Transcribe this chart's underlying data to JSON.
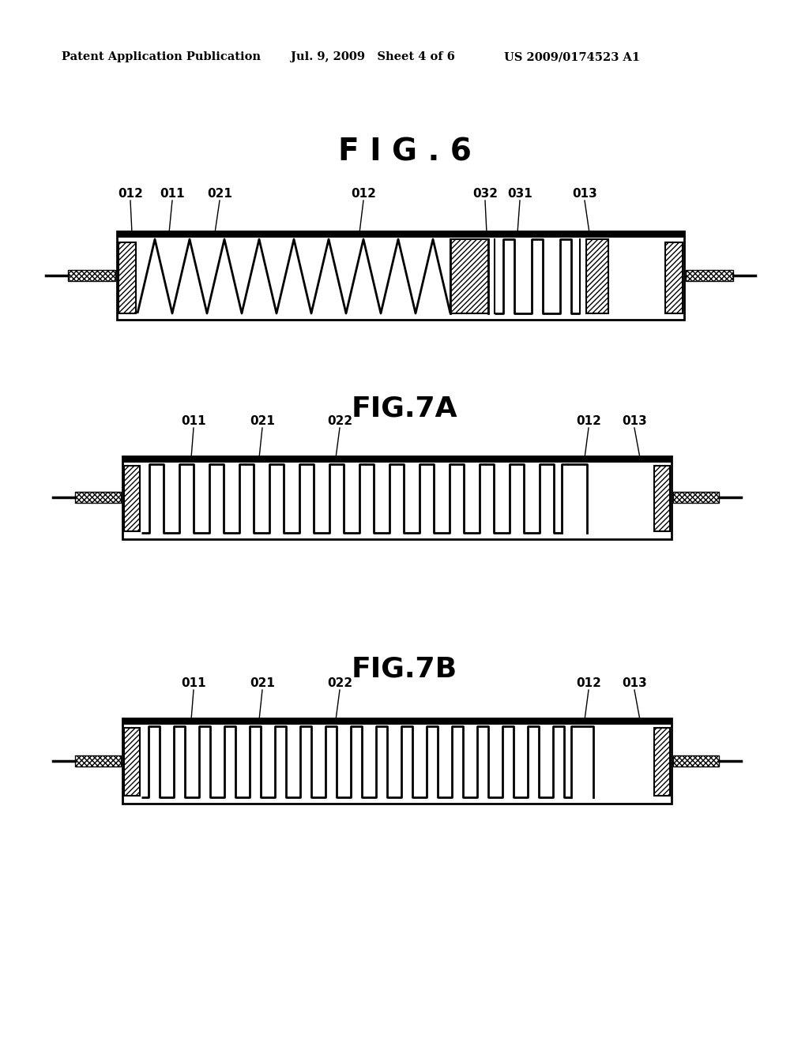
{
  "bg_color": "#ffffff",
  "header_left": "Patent Application Publication",
  "header_mid": "Jul. 9, 2009   Sheet 4 of 6",
  "header_right": "US 2009/0174523 A1",
  "fig6_title": "F I G . 6",
  "fig7a_title": "FIG.7A",
  "fig7b_title": "FIG.7B",
  "line_color": "#000000"
}
